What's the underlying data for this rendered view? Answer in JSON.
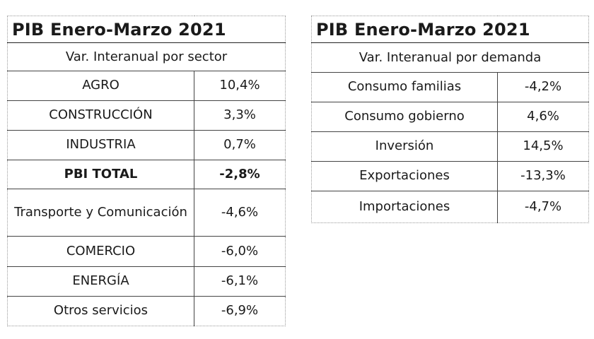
{
  "sector_table": {
    "title": "PIB Enero-Marzo 2021",
    "subtitle": "Var. Interanual por sector",
    "rows": [
      {
        "label": "AGRO",
        "value": "10,4%"
      },
      {
        "label": "CONSTRUCCIÓN",
        "value": "3,3%"
      },
      {
        "label": "INDUSTRIA",
        "value": "0,7%"
      },
      {
        "label": "PBI TOTAL",
        "value": "-2,8%"
      },
      {
        "label": "Transporte y Comunicación",
        "value": "-4,6%"
      },
      {
        "label": "COMERCIO",
        "value": "-6,0%"
      },
      {
        "label": "ENERGÍA",
        "value": "-6,1%"
      },
      {
        "label": "Otros servicios",
        "value": "-6,9%"
      }
    ]
  },
  "demand_table": {
    "title": "PIB Enero-Marzo 2021",
    "subtitle": "Var. Interanual por demanda",
    "rows": [
      {
        "label": "Consumo familias",
        "value": "-4,2%"
      },
      {
        "label": "Consumo gobierno",
        "value": "4,6%"
      },
      {
        "label": "Inversión",
        "value": "14,5%"
      },
      {
        "label": "Exportaciones",
        "value": "-13,3%"
      },
      {
        "label": "Importaciones",
        "value": "-4,7%"
      }
    ]
  }
}
